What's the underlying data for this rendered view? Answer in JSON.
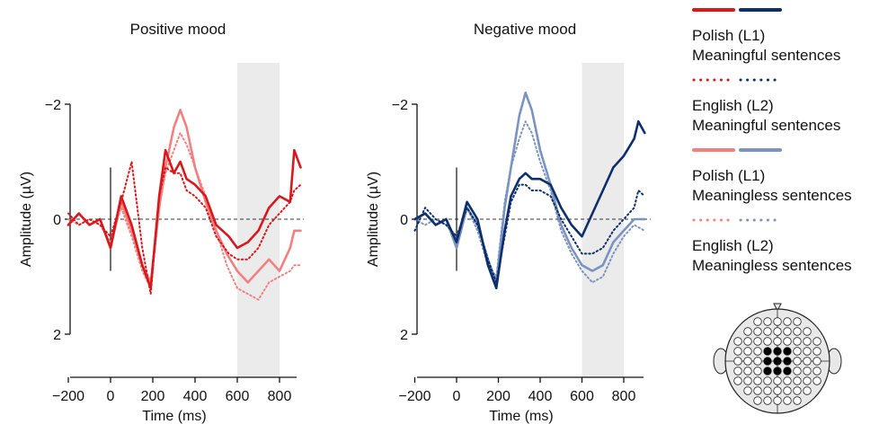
{
  "chart_data": [
    {
      "type": "line",
      "title": "Positive mood",
      "xlabel": "Time (ms)",
      "ylabel": "Amplitude (µV)",
      "xlim": [
        -200,
        900
      ],
      "ylim": [
        2,
        -2
      ],
      "y_axis_inverted": true,
      "x_ticks": [
        "−200",
        "0",
        "200",
        "400",
        "600",
        "800"
      ],
      "y_ticks": [
        "−2",
        "0",
        "2"
      ],
      "shaded_window": [
        600,
        800
      ],
      "series": [
        {
          "name": "Polish (L1) Meaningful sentences",
          "color": "#d7191c",
          "style": "solid",
          "points": [
            [
              -200,
              0.1
            ],
            [
              -150,
              -0.1
            ],
            [
              -100,
              0.1
            ],
            [
              -50,
              0.0
            ],
            [
              0,
              0.5
            ],
            [
              50,
              -0.4
            ],
            [
              100,
              0.1
            ],
            [
              150,
              0.8
            ],
            [
              190,
              1.2
            ],
            [
              230,
              -0.4
            ],
            [
              260,
              -1.2
            ],
            [
              300,
              -0.8
            ],
            [
              330,
              -1.0
            ],
            [
              360,
              -0.7
            ],
            [
              400,
              -0.6
            ],
            [
              450,
              -0.4
            ],
            [
              500,
              0.1
            ],
            [
              560,
              0.3
            ],
            [
              600,
              0.5
            ],
            [
              650,
              0.4
            ],
            [
              700,
              0.2
            ],
            [
              750,
              -0.2
            ],
            [
              800,
              -0.4
            ],
            [
              850,
              -0.3
            ],
            [
              870,
              -1.2
            ],
            [
              900,
              -0.9
            ]
          ]
        },
        {
          "name": "English (L2) Meaningful sentences",
          "color": "#d7191c",
          "style": "dotted",
          "points": [
            [
              -200,
              -0.1
            ],
            [
              -150,
              0.1
            ],
            [
              -100,
              0.0
            ],
            [
              -50,
              0.1
            ],
            [
              0,
              0.3
            ],
            [
              50,
              -0.3
            ],
            [
              100,
              -1.0
            ],
            [
              150,
              0.5
            ],
            [
              190,
              1.3
            ],
            [
              230,
              -0.4
            ],
            [
              260,
              -0.9
            ],
            [
              300,
              -0.8
            ],
            [
              330,
              -0.8
            ],
            [
              360,
              -0.5
            ],
            [
              400,
              -0.4
            ],
            [
              450,
              -0.2
            ],
            [
              500,
              0.3
            ],
            [
              560,
              0.6
            ],
            [
              600,
              0.7
            ],
            [
              650,
              0.7
            ],
            [
              700,
              0.5
            ],
            [
              750,
              0.1
            ],
            [
              800,
              -0.1
            ],
            [
              850,
              -0.3
            ],
            [
              870,
              -0.5
            ],
            [
              900,
              -0.6
            ]
          ]
        },
        {
          "name": "Polish (L1) Meaningless sentences",
          "color": "#f28080",
          "style": "solid",
          "points": [
            [
              -200,
              0.1
            ],
            [
              -150,
              -0.1
            ],
            [
              -100,
              0.1
            ],
            [
              -50,
              0.0
            ],
            [
              0,
              0.5
            ],
            [
              50,
              -0.3
            ],
            [
              100,
              0.2
            ],
            [
              150,
              0.8
            ],
            [
              190,
              1.1
            ],
            [
              230,
              -0.2
            ],
            [
              260,
              -0.9
            ],
            [
              300,
              -1.6
            ],
            [
              330,
              -1.9
            ],
            [
              360,
              -1.6
            ],
            [
              400,
              -0.9
            ],
            [
              450,
              -0.3
            ],
            [
              500,
              0.2
            ],
            [
              550,
              0.6
            ],
            [
              600,
              0.9
            ],
            [
              650,
              1.1
            ],
            [
              700,
              0.9
            ],
            [
              750,
              0.7
            ],
            [
              800,
              0.9
            ],
            [
              850,
              0.5
            ],
            [
              870,
              0.2
            ],
            [
              900,
              0.2
            ]
          ]
        },
        {
          "name": "English (L2) Meaningless sentences",
          "color": "#f28080",
          "style": "dotted",
          "points": [
            [
              -200,
              0.0
            ],
            [
              -150,
              0.1
            ],
            [
              -100,
              0.0
            ],
            [
              -50,
              0.1
            ],
            [
              0,
              0.4
            ],
            [
              50,
              -0.2
            ],
            [
              100,
              0.3
            ],
            [
              150,
              0.9
            ],
            [
              190,
              1.2
            ],
            [
              230,
              -0.2
            ],
            [
              260,
              -0.8
            ],
            [
              300,
              -1.2
            ],
            [
              330,
              -1.5
            ],
            [
              360,
              -1.3
            ],
            [
              400,
              -0.9
            ],
            [
              450,
              -0.4
            ],
            [
              500,
              0.2
            ],
            [
              550,
              0.8
            ],
            [
              600,
              1.2
            ],
            [
              650,
              1.3
            ],
            [
              700,
              1.4
            ],
            [
              750,
              1.1
            ],
            [
              800,
              1.0
            ],
            [
              850,
              0.9
            ],
            [
              870,
              0.8
            ],
            [
              900,
              0.8
            ]
          ]
        }
      ]
    },
    {
      "type": "line",
      "title": "Negative mood",
      "xlabel": "Time (ms)",
      "ylabel": "Amplitude (µV)",
      "xlim": [
        -200,
        900
      ],
      "ylim": [
        2,
        -2
      ],
      "y_axis_inverted": true,
      "x_ticks": [
        "−200",
        "0",
        "200",
        "400",
        "600",
        "800"
      ],
      "y_ticks": [
        "−2",
        "0",
        "2"
      ],
      "shaded_window": [
        600,
        800
      ],
      "series": [
        {
          "name": "Polish (L1) Meaningful sentences",
          "color": "#0d2f6b",
          "style": "solid",
          "points": [
            [
              -200,
              0.0
            ],
            [
              -150,
              -0.1
            ],
            [
              -100,
              0.1
            ],
            [
              -50,
              0.0
            ],
            [
              0,
              0.4
            ],
            [
              50,
              -0.3
            ],
            [
              100,
              0.0
            ],
            [
              150,
              0.8
            ],
            [
              190,
              1.2
            ],
            [
              230,
              0.2
            ],
            [
              260,
              -0.4
            ],
            [
              300,
              -0.7
            ],
            [
              330,
              -0.8
            ],
            [
              360,
              -0.7
            ],
            [
              400,
              -0.7
            ],
            [
              450,
              -0.6
            ],
            [
              500,
              -0.2
            ],
            [
              550,
              0.1
            ],
            [
              600,
              0.3
            ],
            [
              650,
              -0.1
            ],
            [
              700,
              -0.5
            ],
            [
              750,
              -0.9
            ],
            [
              800,
              -1.1
            ],
            [
              850,
              -1.4
            ],
            [
              870,
              -1.7
            ],
            [
              900,
              -1.5
            ]
          ]
        },
        {
          "name": "English (L2) Meaningful sentences",
          "color": "#0d2f6b",
          "style": "dotted",
          "points": [
            [
              -200,
              0.2
            ],
            [
              -150,
              -0.2
            ],
            [
              -100,
              0.0
            ],
            [
              -50,
              0.1
            ],
            [
              0,
              0.3
            ],
            [
              50,
              -0.2
            ],
            [
              100,
              0.1
            ],
            [
              150,
              0.7
            ],
            [
              190,
              1.1
            ],
            [
              230,
              0.3
            ],
            [
              260,
              -0.3
            ],
            [
              300,
              -0.6
            ],
            [
              330,
              -0.6
            ],
            [
              360,
              -0.5
            ],
            [
              400,
              -0.5
            ],
            [
              450,
              -0.4
            ],
            [
              500,
              0.0
            ],
            [
              550,
              0.3
            ],
            [
              600,
              0.6
            ],
            [
              650,
              0.6
            ],
            [
              700,
              0.5
            ],
            [
              750,
              0.2
            ],
            [
              800,
              0.0
            ],
            [
              850,
              -0.2
            ],
            [
              870,
              -0.5
            ],
            [
              900,
              -0.4
            ]
          ]
        },
        {
          "name": "Polish (L1) Meaningless sentences",
          "color": "#7b93c0",
          "style": "solid",
          "points": [
            [
              -200,
              0.0
            ],
            [
              -150,
              -0.1
            ],
            [
              -100,
              0.1
            ],
            [
              -50,
              0.0
            ],
            [
              0,
              0.5
            ],
            [
              50,
              -0.2
            ],
            [
              100,
              0.1
            ],
            [
              150,
              0.7
            ],
            [
              190,
              1.1
            ],
            [
              230,
              -0.2
            ],
            [
              260,
              -0.9
            ],
            [
              300,
              -1.8
            ],
            [
              330,
              -2.2
            ],
            [
              360,
              -1.9
            ],
            [
              400,
              -1.2
            ],
            [
              450,
              -0.6
            ],
            [
              500,
              0.1
            ],
            [
              550,
              0.5
            ],
            [
              600,
              0.8
            ],
            [
              650,
              0.9
            ],
            [
              700,
              0.8
            ],
            [
              750,
              0.4
            ],
            [
              800,
              0.2
            ],
            [
              850,
              0.0
            ],
            [
              900,
              0.0
            ]
          ]
        },
        {
          "name": "English (L2) Meaningless sentences",
          "color": "#7b93c0",
          "style": "dotted",
          "points": [
            [
              -200,
              0.0
            ],
            [
              -150,
              0.1
            ],
            [
              -100,
              0.0
            ],
            [
              -50,
              0.1
            ],
            [
              0,
              0.3
            ],
            [
              50,
              -0.2
            ],
            [
              100,
              0.2
            ],
            [
              150,
              0.8
            ],
            [
              190,
              1.0
            ],
            [
              230,
              -0.3
            ],
            [
              260,
              -0.9
            ],
            [
              300,
              -1.4
            ],
            [
              330,
              -1.7
            ],
            [
              360,
              -1.5
            ],
            [
              400,
              -1.0
            ],
            [
              450,
              -0.5
            ],
            [
              500,
              0.2
            ],
            [
              550,
              0.6
            ],
            [
              600,
              0.9
            ],
            [
              650,
              1.1
            ],
            [
              700,
              1.0
            ],
            [
              750,
              0.6
            ],
            [
              800,
              0.3
            ],
            [
              850,
              0.1
            ],
            [
              900,
              0.2
            ]
          ]
        }
      ]
    }
  ],
  "legend": {
    "items": [
      {
        "line1": "Polish (L1)",
        "line2": "Meaningful sentences",
        "colors": [
          "#d7191c",
          "#0d2f6b"
        ],
        "style": "solid"
      },
      {
        "line1": "English (L2)",
        "line2": "Meaningful sentences",
        "colors": [
          "#d7191c",
          "#0d2f6b"
        ],
        "style": "dotted"
      },
      {
        "line1": "Polish (L1)",
        "line2": "Meaningless sentences",
        "colors": [
          "#f28080",
          "#7b93c0"
        ],
        "style": "solid"
      },
      {
        "line1": "English (L2)",
        "line2": "Meaningless sentences",
        "colors": [
          "#f28080",
          "#7b93c0"
        ],
        "style": "dotted"
      }
    ]
  },
  "head_map": {
    "icon": "electrode-montage-head-icon",
    "highlighted_electrodes": 9
  },
  "colors": {
    "shade": "#ebebeb",
    "axis": "#111111",
    "zero_line": "#333333"
  }
}
